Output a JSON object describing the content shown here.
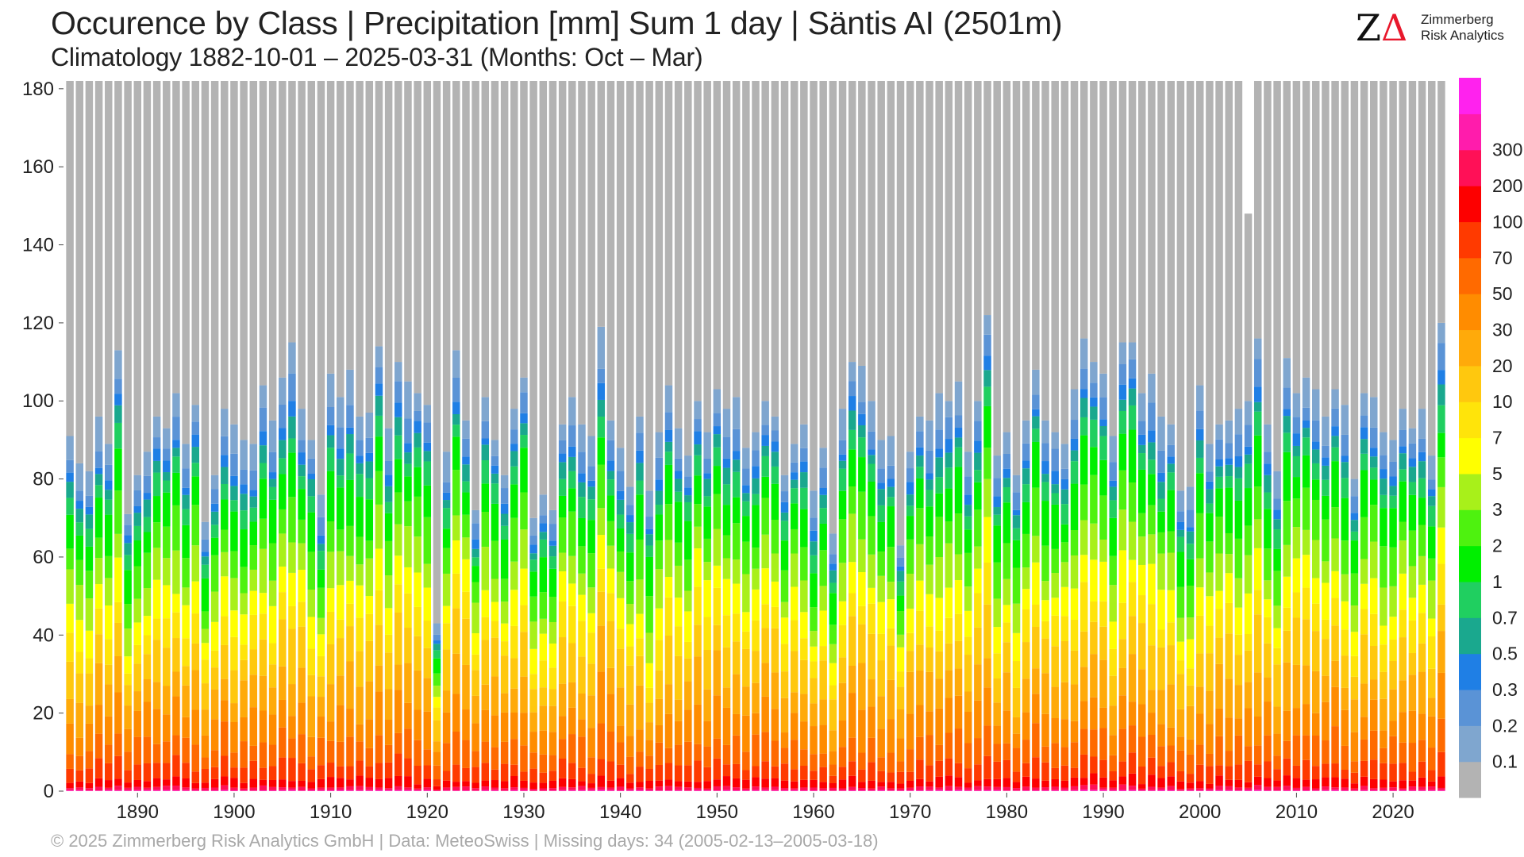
{
  "title": "Occurence by Class | Precipitation [mm] Sum 1 day | Säntis  AI (2501m)",
  "subtitle": "Climatology 1882-10-01 – 2025-03-31 (Months: Oct – Mar)",
  "logo": {
    "line1": "Zimmerberg",
    "line2": "Risk Analytics",
    "mark_z": "Z",
    "mark_d": "Δ"
  },
  "footer": "©  2025 Zimmerberg Risk Analytics GmbH | Data: MeteoSwiss | Missing days: 34 (2005-02-13–2005-03-18)",
  "colors": {
    "background": "#ffffff",
    "dry": "#b3b3b3",
    "class_colors": [
      "#b3b3b3",
      "#7fa6cf",
      "#5a93d6",
      "#1f7fe5",
      "#1aa88e",
      "#20cf60",
      "#00ef00",
      "#4ef20f",
      "#a8f01a",
      "#ffff00",
      "#ffe40a",
      "#ffc80e",
      "#ffaa0a",
      "#ff8c00",
      "#ff6a00",
      "#ff3a00",
      "#fd0000",
      "#ff1057",
      "#ff1cac",
      "#ff22ee"
    ]
  },
  "chart_data": {
    "type": "bar",
    "stacked": true,
    "title": "Occurence by Class | Precipitation [mm] Sum 1 day | Säntis  AI (2501m)",
    "xlabel": "",
    "ylabel": "",
    "ylim": [
      0,
      182
    ],
    "yticks": [
      0,
      20,
      40,
      60,
      80,
      100,
      120,
      140,
      160,
      180
    ],
    "xlim": [
      1882.5,
      2025.5
    ],
    "xticks": [
      1890,
      1900,
      1910,
      1920,
      1930,
      1940,
      1950,
      1960,
      1970,
      1980,
      1990,
      2000,
      2010,
      2020
    ],
    "years_start": 1883,
    "years_end": 2025,
    "season_days": 182,
    "note_missing": {
      "year": 2005,
      "total_days": 148
    },
    "legend_labels": [
      "0.1",
      "0.2",
      "0.3",
      "0.5",
      "0.7",
      "1",
      "2",
      "3",
      "5",
      "7",
      "10",
      "20",
      "30",
      "50",
      "70",
      "100",
      "200",
      "300"
    ],
    "wet_days_per_year": [
      91,
      84,
      82,
      96,
      89,
      113,
      71,
      81,
      87,
      96,
      93,
      102,
      89,
      99,
      69,
      81,
      98,
      94,
      90,
      89,
      104,
      95,
      106,
      115,
      98,
      90,
      76,
      107,
      101,
      108,
      96,
      97,
      114,
      93,
      110,
      105,
      102,
      99,
      43,
      87,
      113,
      95,
      72,
      101,
      90,
      81,
      98,
      106,
      70,
      76,
      72,
      94,
      101,
      94,
      91,
      119,
      95,
      88,
      78,
      96,
      77,
      92,
      104,
      93,
      86,
      100,
      92,
      103,
      98,
      101,
      88,
      92,
      100,
      96,
      81,
      89,
      94,
      77,
      88,
      66,
      98,
      110,
      109,
      100,
      90,
      91,
      63,
      87,
      96,
      95,
      102,
      100,
      105,
      87,
      100,
      122,
      86,
      92,
      81,
      95,
      108,
      95,
      92,
      89,
      103,
      116,
      110,
      107,
      91,
      115,
      115,
      102,
      107,
      96,
      94,
      77,
      78,
      104,
      89,
      94,
      95,
      98,
      100,
      116,
      94,
      82,
      111,
      102,
      106,
      103,
      96,
      103,
      99,
      80,
      102,
      101,
      92,
      90,
      98,
      93,
      98,
      86,
      120
    ]
  }
}
